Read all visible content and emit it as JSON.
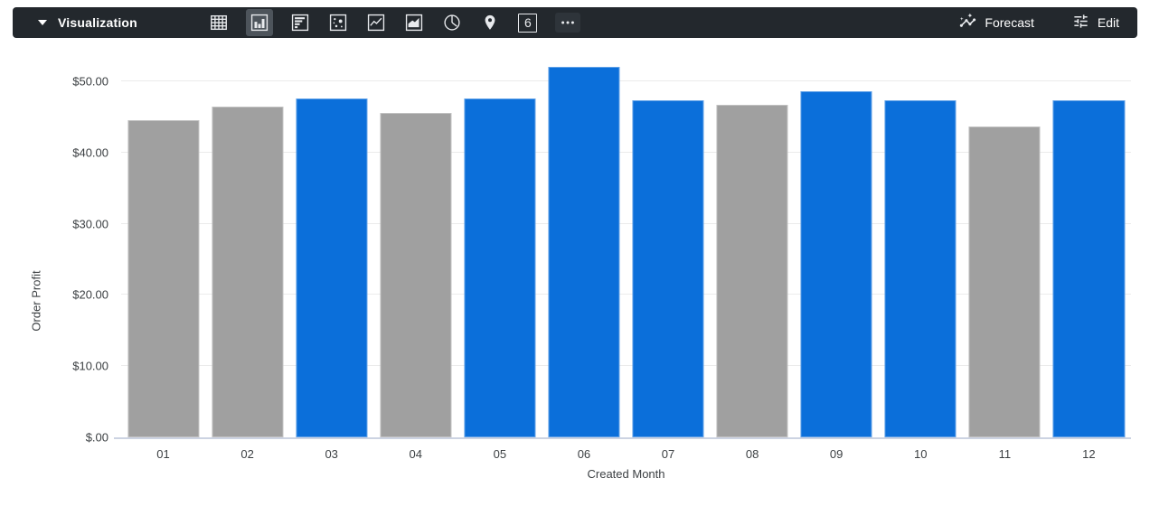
{
  "toolbar": {
    "title": "Visualization",
    "chart_type_icons": [
      {
        "name": "table",
        "selected": false
      },
      {
        "name": "column",
        "selected": true
      },
      {
        "name": "bar",
        "selected": false
      },
      {
        "name": "scatter",
        "selected": false
      },
      {
        "name": "line",
        "selected": false
      },
      {
        "name": "area",
        "selected": false
      },
      {
        "name": "pie",
        "selected": false
      },
      {
        "name": "map",
        "selected": false
      },
      {
        "name": "single-value",
        "selected": false,
        "label": "6"
      },
      {
        "name": "more",
        "selected": false
      }
    ],
    "forecast_label": "Forecast",
    "edit_label": "Edit"
  },
  "chart_data": {
    "type": "bar",
    "title": "",
    "xlabel": "Created Month",
    "ylabel": "Order Profit",
    "categories": [
      "01",
      "02",
      "03",
      "04",
      "05",
      "06",
      "07",
      "08",
      "09",
      "10",
      "11",
      "12"
    ],
    "values": [
      44.6,
      46.5,
      47.6,
      45.6,
      47.6,
      52.0,
      47.3,
      46.7,
      48.6,
      47.3,
      43.7,
      47.3
    ],
    "bar_colors": [
      "gray",
      "gray",
      "blue",
      "gray",
      "blue",
      "blue",
      "blue",
      "gray",
      "blue",
      "blue",
      "gray",
      "blue"
    ],
    "palette": {
      "blue": "#0b6fda",
      "gray": "#a0a0a0"
    },
    "y_ticks": [
      {
        "label": "$.00",
        "value": 0
      },
      {
        "label": "$10.00",
        "value": 10
      },
      {
        "label": "$20.00",
        "value": 20
      },
      {
        "label": "$30.00",
        "value": 30
      },
      {
        "label": "$40.00",
        "value": 40
      },
      {
        "label": "$50.00",
        "value": 50
      }
    ],
    "ylim": [
      0,
      53.8
    ],
    "grid": "horizontal",
    "legend": "none"
  }
}
